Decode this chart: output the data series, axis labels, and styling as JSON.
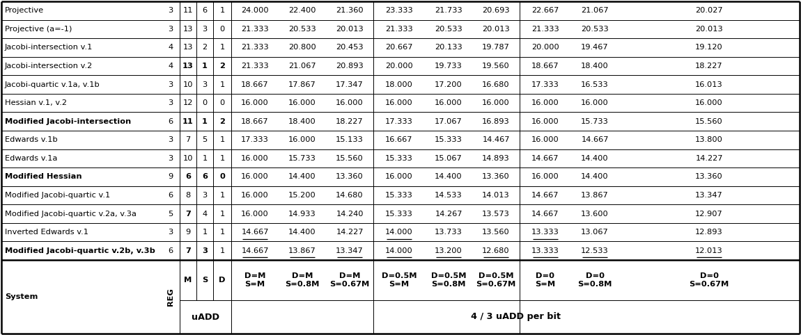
{
  "rows": [
    {
      "system": "Projective",
      "bold_sys": false,
      "reg": "3",
      "M": "11",
      "S": "6",
      "D": "1",
      "bold_M": false,
      "bold_S": false,
      "bold_D": false,
      "v": [
        "24.000",
        "22.400",
        "21.360",
        "23.333",
        "21.733",
        "20.693",
        "22.667",
        "21.067",
        "20.027"
      ],
      "underline": []
    },
    {
      "system": "Projective (a=-1)",
      "bold_sys": false,
      "reg": "3",
      "M": "13",
      "S": "3",
      "D": "0",
      "bold_M": false,
      "bold_S": false,
      "bold_D": false,
      "v": [
        "21.333",
        "20.533",
        "20.013",
        "21.333",
        "20.533",
        "20.013",
        "21.333",
        "20.533",
        "20.013"
      ],
      "underline": []
    },
    {
      "system": "Jacobi-intersection v.1",
      "bold_sys": false,
      "reg": "4",
      "M": "13",
      "S": "2",
      "D": "1",
      "bold_M": false,
      "bold_S": false,
      "bold_D": false,
      "v": [
        "21.333",
        "20.800",
        "20.453",
        "20.667",
        "20.133",
        "19.787",
        "20.000",
        "19.467",
        "19.120"
      ],
      "underline": []
    },
    {
      "system": "Jacobi-intersection v.2",
      "bold_sys": false,
      "reg": "4",
      "M": "13",
      "S": "1",
      "D": "2",
      "bold_M": true,
      "bold_S": true,
      "bold_D": true,
      "v": [
        "21.333",
        "21.067",
        "20.893",
        "20.000",
        "19.733",
        "19.560",
        "18.667",
        "18.400",
        "18.227"
      ],
      "underline": []
    },
    {
      "system": "Jacobi-quartic v.1a, v.1b",
      "bold_sys": false,
      "reg": "3",
      "M": "10",
      "S": "3",
      "D": "1",
      "bold_M": false,
      "bold_S": false,
      "bold_D": false,
      "v": [
        "18.667",
        "17.867",
        "17.347",
        "18.000",
        "17.200",
        "16.680",
        "17.333",
        "16.533",
        "16.013"
      ],
      "underline": []
    },
    {
      "system": "Hessian v.1, v.2",
      "bold_sys": false,
      "reg": "3",
      "M": "12",
      "S": "0",
      "D": "0",
      "bold_M": false,
      "bold_S": false,
      "bold_D": false,
      "v": [
        "16.000",
        "16.000",
        "16.000",
        "16.000",
        "16.000",
        "16.000",
        "16.000",
        "16.000",
        "16.000"
      ],
      "underline": []
    },
    {
      "system": "Modified Jacobi-intersection",
      "bold_sys": true,
      "reg": "6",
      "M": "11",
      "S": "1",
      "D": "2",
      "bold_M": true,
      "bold_S": true,
      "bold_D": true,
      "v": [
        "18.667",
        "18.400",
        "18.227",
        "17.333",
        "17.067",
        "16.893",
        "16.000",
        "15.733",
        "15.560"
      ],
      "underline": []
    },
    {
      "system": "Edwards v.1b",
      "bold_sys": false,
      "reg": "3",
      "M": "7",
      "S": "5",
      "D": "1",
      "bold_M": false,
      "bold_S": false,
      "bold_D": false,
      "v": [
        "17.333",
        "16.000",
        "15.133",
        "16.667",
        "15.333",
        "14.467",
        "16.000",
        "14.667",
        "13.800"
      ],
      "underline": []
    },
    {
      "system": "Edwards v.1a",
      "bold_sys": false,
      "reg": "3",
      "M": "10",
      "S": "1",
      "D": "1",
      "bold_M": false,
      "bold_S": false,
      "bold_D": false,
      "v": [
        "16.000",
        "15.733",
        "15.560",
        "15.333",
        "15.067",
        "14.893",
        "14.667",
        "14.400",
        "14.227"
      ],
      "underline": []
    },
    {
      "system": "Modified Hessian",
      "bold_sys": true,
      "reg": "9",
      "M": "6",
      "S": "6",
      "D": "0",
      "bold_M": true,
      "bold_S": true,
      "bold_D": true,
      "v": [
        "16.000",
        "14.400",
        "13.360",
        "16.000",
        "14.400",
        "13.360",
        "16.000",
        "14.400",
        "13.360"
      ],
      "underline": []
    },
    {
      "system": "Modified Jacobi-quartic v.1",
      "bold_sys": false,
      "reg": "6",
      "M": "8",
      "S": "3",
      "D": "1",
      "bold_M": false,
      "bold_S": false,
      "bold_D": false,
      "v": [
        "16.000",
        "15.200",
        "14.680",
        "15.333",
        "14.533",
        "14.013",
        "14.667",
        "13.867",
        "13.347"
      ],
      "underline": []
    },
    {
      "system": "Modified Jacobi-quartic v.2a, v.3a",
      "bold_sys": false,
      "reg": "5",
      "M": "7",
      "S": "4",
      "D": "1",
      "bold_M": true,
      "bold_S": false,
      "bold_D": false,
      "v": [
        "16.000",
        "14.933",
        "14.240",
        "15.333",
        "14.267",
        "13.573",
        "14.667",
        "13.600",
        "12.907"
      ],
      "underline": []
    },
    {
      "system": "Inverted Edwards v.1",
      "bold_sys": false,
      "reg": "3",
      "M": "9",
      "S": "1",
      "D": "1",
      "bold_M": false,
      "bold_S": false,
      "bold_D": false,
      "v": [
        "14.667",
        "14.400",
        "14.227",
        "14.000",
        "13.733",
        "13.560",
        "13.333",
        "13.067",
        "12.893"
      ],
      "underline": [
        0,
        3,
        6
      ]
    },
    {
      "system": "Modified Jacobi-quartic v.2b, v.3b",
      "bold_sys": true,
      "reg": "6",
      "M": "7",
      "S": "3",
      "D": "1",
      "bold_M": true,
      "bold_S": true,
      "bold_D": false,
      "v": [
        "14.667",
        "13.867",
        "13.347",
        "14.000",
        "13.200",
        "12.680",
        "13.333",
        "12.533",
        "12.013"
      ],
      "underline": [
        0,
        1,
        2,
        3,
        4,
        5,
        6,
        7,
        8
      ]
    }
  ],
  "background_color": "#ffffff",
  "font_size": 8.2
}
